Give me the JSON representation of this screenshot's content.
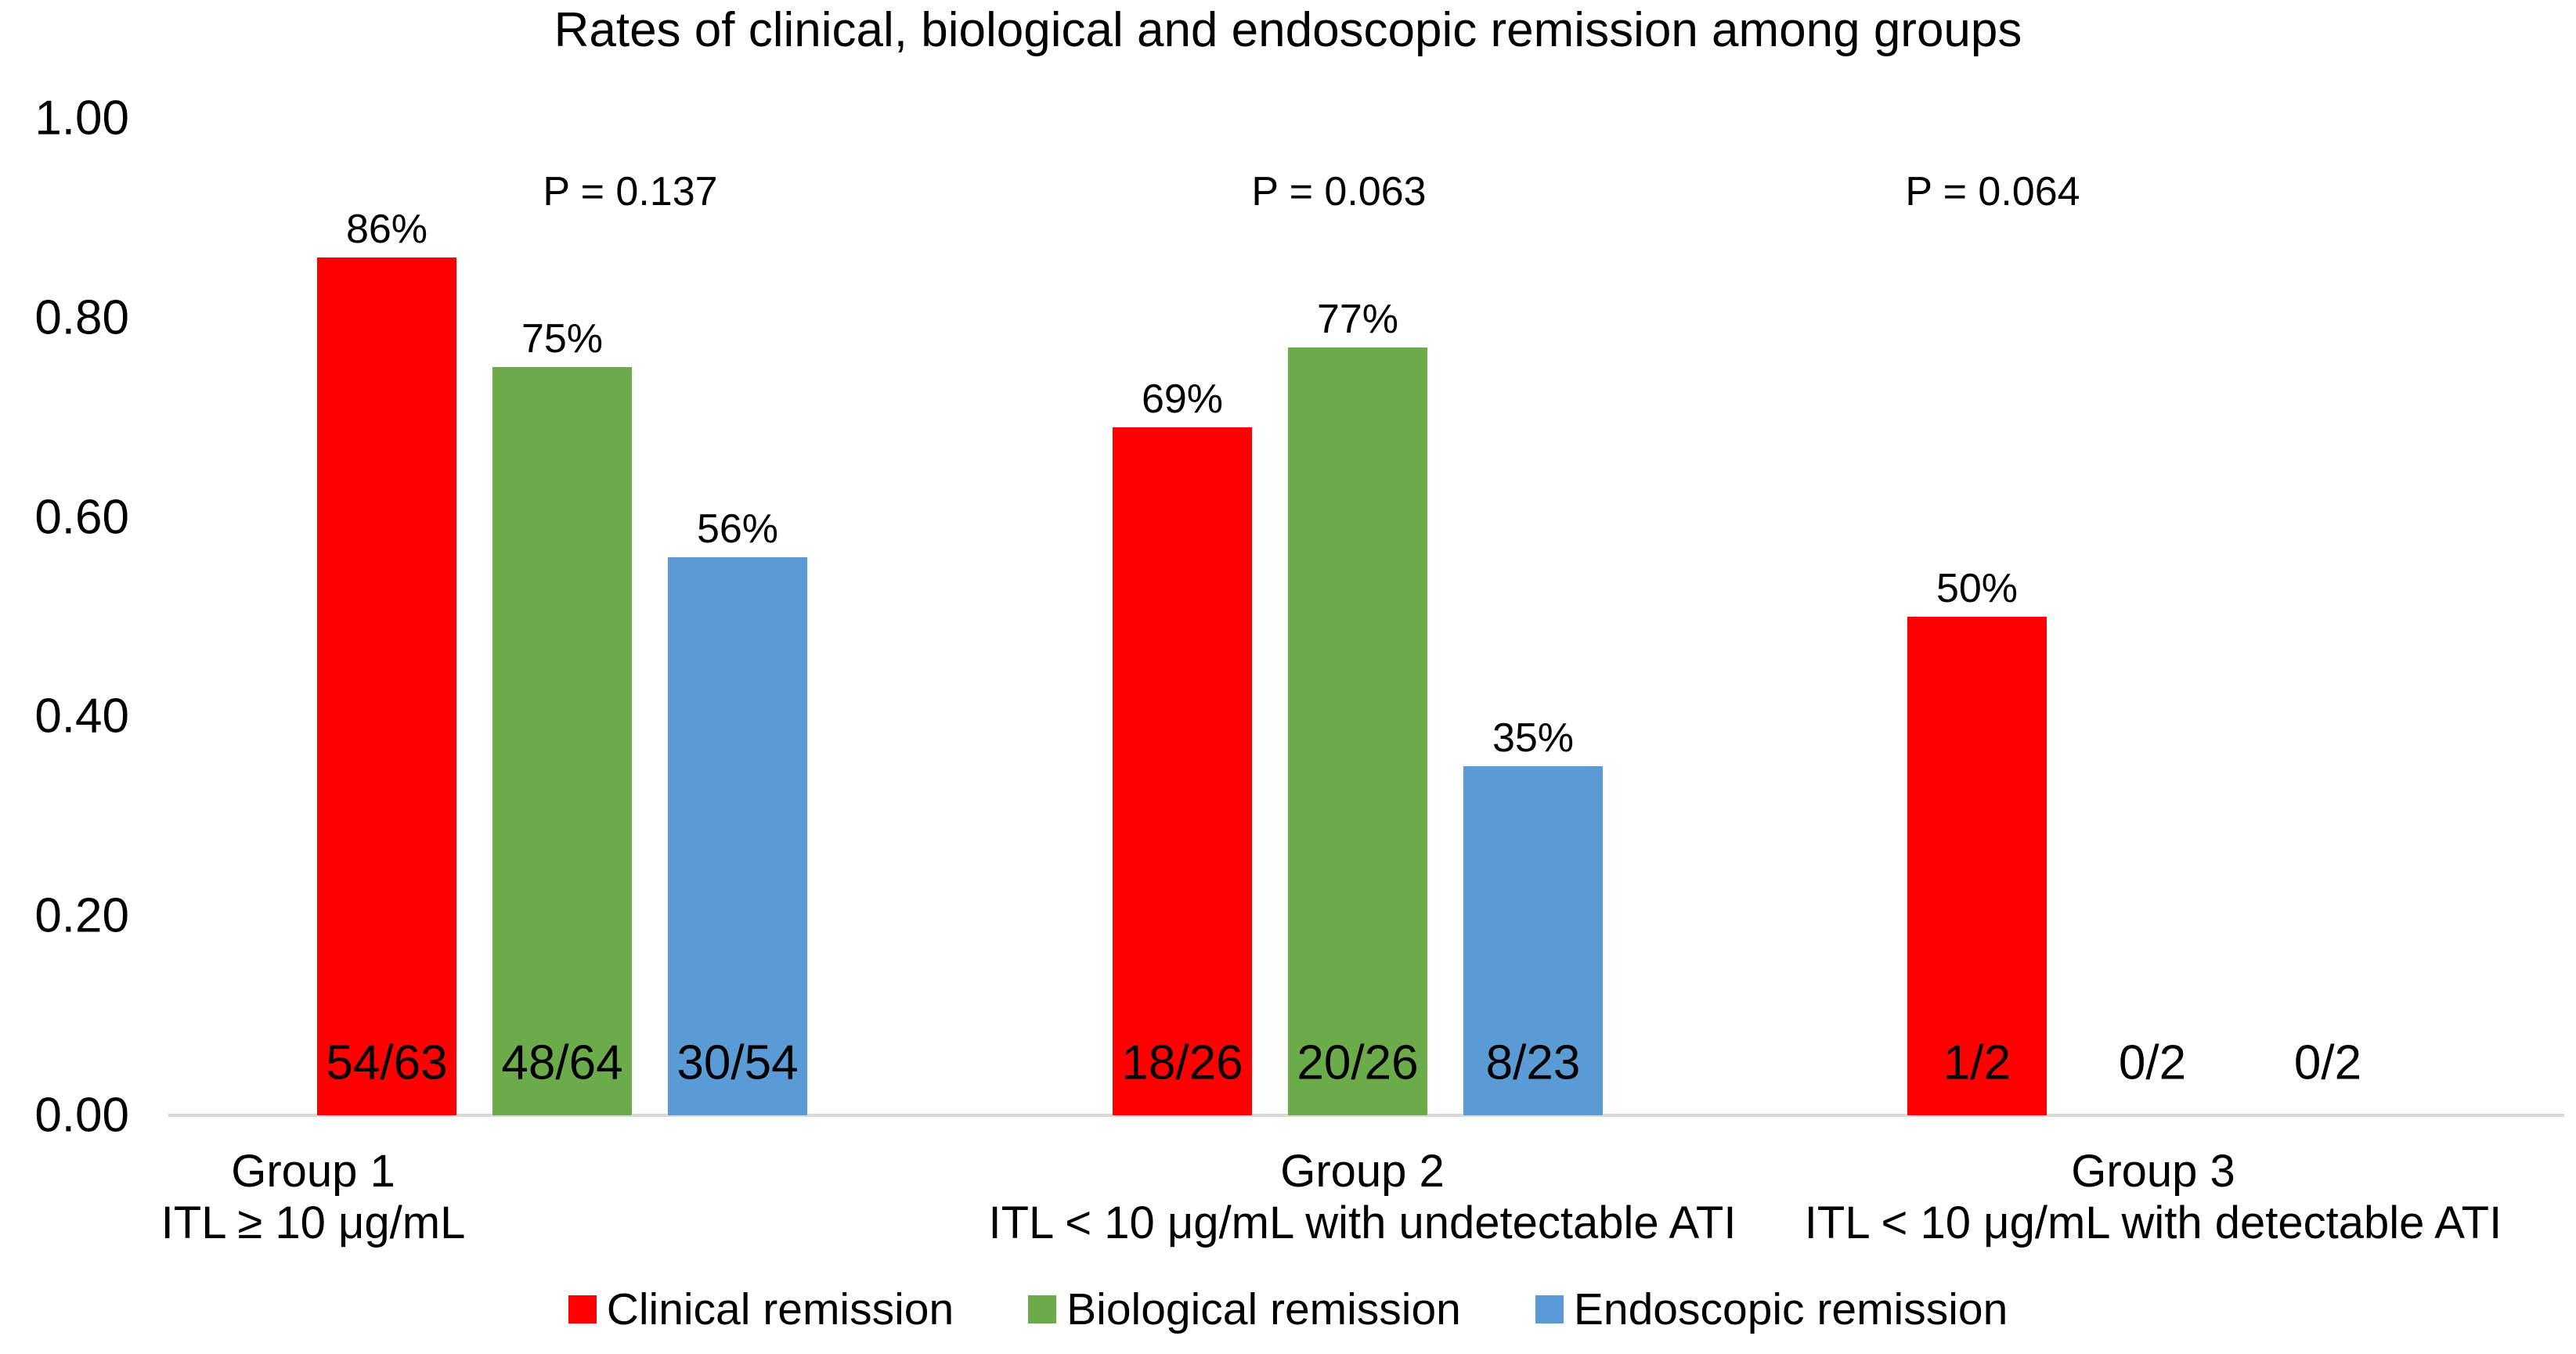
{
  "chart_data": {
    "type": "bar",
    "title": "Rates of clinical, biological and endoscopic remission among groups",
    "grid": false,
    "legend_position": "bottom",
    "y_axis": {
      "min": 0,
      "max": 1,
      "ticks": [
        {
          "label": "0.00",
          "value": 0.0
        },
        {
          "label": "0.20",
          "value": 0.2
        },
        {
          "label": "0.40",
          "value": 0.4
        },
        {
          "label": "0.60",
          "value": 0.6
        },
        {
          "label": "0.80",
          "value": 0.8
        },
        {
          "label": "1.00",
          "value": 1.0
        }
      ]
    },
    "series": [
      {
        "name": "Clinical remission",
        "color": "#ff0000"
      },
      {
        "name": "Biological remission",
        "color": "#6cab4a"
      },
      {
        "name": "Endoscopic remission",
        "color": "#5b9bd5"
      }
    ],
    "groups": [
      {
        "label_line1": "Group 1",
        "label_line2": "ITL ≥ 10 μg/mL",
        "p_label": "P = 0.137",
        "bars": [
          {
            "series": "Clinical remission",
            "value": 0.86,
            "pct_label": "86%",
            "count_label": "54/63"
          },
          {
            "series": "Biological remission",
            "value": 0.75,
            "pct_label": "75%",
            "count_label": "48/64"
          },
          {
            "series": "Endoscopic remission",
            "value": 0.56,
            "pct_label": "56%",
            "count_label": "30/54"
          }
        ]
      },
      {
        "label_line1": "Group 2",
        "label_line2": "ITL < 10 μg/mL with undetectable ATI",
        "p_label": "P = 0.063",
        "bars": [
          {
            "series": "Clinical remission",
            "value": 0.69,
            "pct_label": "69%",
            "count_label": "18/26"
          },
          {
            "series": "Biological remission",
            "value": 0.77,
            "pct_label": "77%",
            "count_label": "20/26"
          },
          {
            "series": "Endoscopic remission",
            "value": 0.35,
            "pct_label": "35%",
            "count_label": "8/23"
          }
        ]
      },
      {
        "label_line1": "Group 3",
        "label_line2": "ITL < 10 μg/mL with detectable ATI",
        "p_label": "P = 0.064",
        "bars": [
          {
            "series": "Clinical remission",
            "value": 0.5,
            "pct_label": "50%",
            "count_label": "1/2"
          },
          {
            "series": "Biological remission",
            "value": 0,
            "pct_label": "",
            "count_label": "0/2"
          },
          {
            "series": "Endoscopic remission",
            "value": 0,
            "pct_label": "",
            "count_label": "0/2"
          }
        ]
      }
    ],
    "legend": [
      "Clinical remission",
      "Biological remission",
      "Endoscopic remission"
    ]
  }
}
